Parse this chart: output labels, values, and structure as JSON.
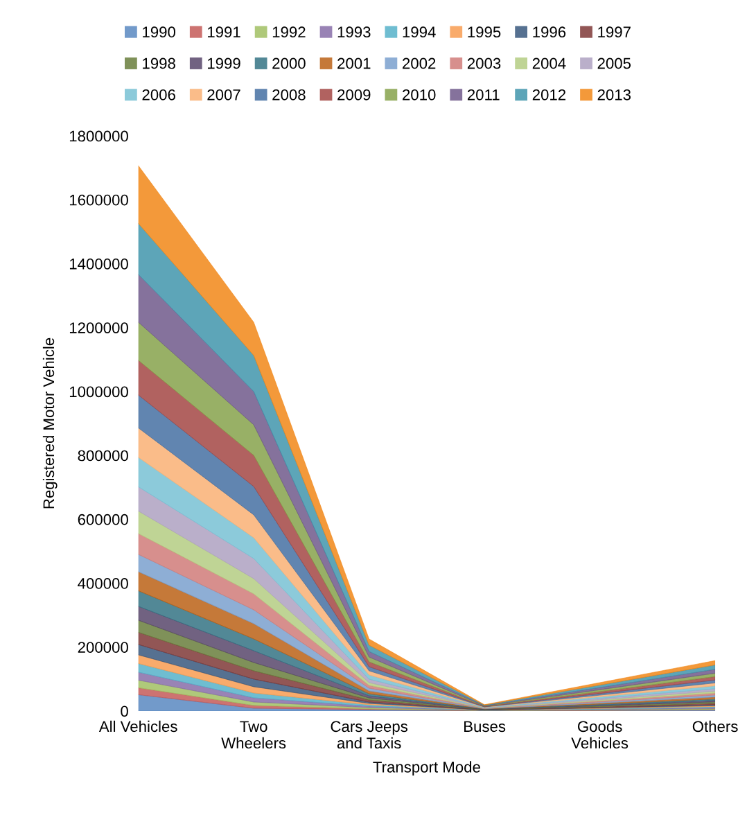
{
  "chart_data": {
    "type": "area",
    "stacked": true,
    "xlabel": "Transport Mode",
    "ylabel": "Registered Motor Vehicle",
    "categories": [
      "All Vehicles",
      "Two Wheelers",
      "Cars Jeeps and Taxis",
      "Buses",
      "Goods Vehicles",
      "Others"
    ],
    "ylim": [
      0,
      1800000
    ],
    "yticks": [
      0,
      200000,
      400000,
      600000,
      800000,
      1000000,
      1200000,
      1400000,
      1600000,
      1800000
    ],
    "grid": false,
    "legend": "top",
    "series": [
      {
        "name": "1990",
        "color": "#4f81bd",
        "values": [
          51000,
          8700,
          4300,
          400,
          1700,
          3010
        ]
      },
      {
        "name": "1991",
        "color": "#c0504d",
        "values": [
          21700,
          8700,
          2200,
          400,
          870,
          1540
        ]
      },
      {
        "name": "1992",
        "color": "#9bbb59",
        "values": [
          23800,
          10800,
          4300,
          450,
          1700,
          3010
        ]
      },
      {
        "name": "1993",
        "color": "#8064a2",
        "values": [
          25000,
          13000,
          4300,
          500,
          1700,
          3010
        ]
      },
      {
        "name": "1994",
        "color": "#4bacc6",
        "values": [
          27100,
          15200,
          4300,
          500,
          1700,
          3010
        ]
      },
      {
        "name": "1995",
        "color": "#f79646",
        "values": [
          27100,
          19500,
          4300,
          550,
          1700,
          3010
        ]
      },
      {
        "name": "1996",
        "color": "#2c4d75",
        "values": [
          32500,
          23900,
          4300,
          600,
          1700,
          3010
        ]
      },
      {
        "name": "1997",
        "color": "#772c2a",
        "values": [
          38000,
          26000,
          6500,
          650,
          2560,
          4550
        ]
      },
      {
        "name": "1998",
        "color": "#5f7530",
        "values": [
          37900,
          26000,
          6500,
          650,
          2560,
          4550
        ]
      },
      {
        "name": "1999",
        "color": "#4d3b62",
        "values": [
          43400,
          36900,
          6500,
          700,
          2560,
          4550
        ]
      },
      {
        "name": "2000",
        "color": "#276a7c",
        "values": [
          48800,
          36900,
          6500,
          750,
          2560,
          4550
        ]
      },
      {
        "name": "2001",
        "color": "#b65708",
        "values": [
          59700,
          47700,
          8700,
          800,
          3430,
          6090
        ]
      },
      {
        "name": "2002",
        "color": "#729aca",
        "values": [
          54200,
          43400,
          8700,
          800,
          3430,
          6090
        ]
      },
      {
        "name": "2003",
        "color": "#cd7371",
        "values": [
          65100,
          49900,
          8700,
          850,
          3430,
          6090
        ]
      },
      {
        "name": "2004",
        "color": "#afc97a",
        "values": [
          70500,
          47700,
          8700,
          900,
          3430,
          6090
        ]
      },
      {
        "name": "2005",
        "color": "#a99bbd",
        "values": [
          75900,
          62900,
          10800,
          950,
          4260,
          7560
        ]
      },
      {
        "name": "2006",
        "color": "#6fbdd1",
        "values": [
          92200,
          65100,
          13000,
          1000,
          5120,
          9100
        ]
      },
      {
        "name": "2007",
        "color": "#f9ab6b",
        "values": [
          92100,
          71600,
          13000,
          1050,
          5120,
          9100
        ]
      },
      {
        "name": "2008",
        "color": "#3a679c",
        "values": [
          103000,
          88900,
          13000,
          1100,
          5120,
          9100
        ]
      },
      {
        "name": "2009",
        "color": "#9e3b38",
        "values": [
          108500,
          97600,
          15200,
          1150,
          5990,
          10640
        ]
      },
      {
        "name": "2010",
        "color": "#7e9c40",
        "values": [
          119300,
          95400,
          15200,
          1200,
          5990,
          10640
        ]
      },
      {
        "name": "2011",
        "color": "#664f83",
        "values": [
          149700,
          104100,
          17400,
          1250,
          6860,
          12180
        ]
      },
      {
        "name": "2012",
        "color": "#358ea6",
        "values": [
          159400,
          112800,
          19500,
          1300,
          7680,
          13650
        ]
      },
      {
        "name": "2013",
        "color": "#f07f09",
        "values": [
          181100,
          104100,
          19500,
          1350,
          7680,
          13650
        ]
      }
    ]
  }
}
